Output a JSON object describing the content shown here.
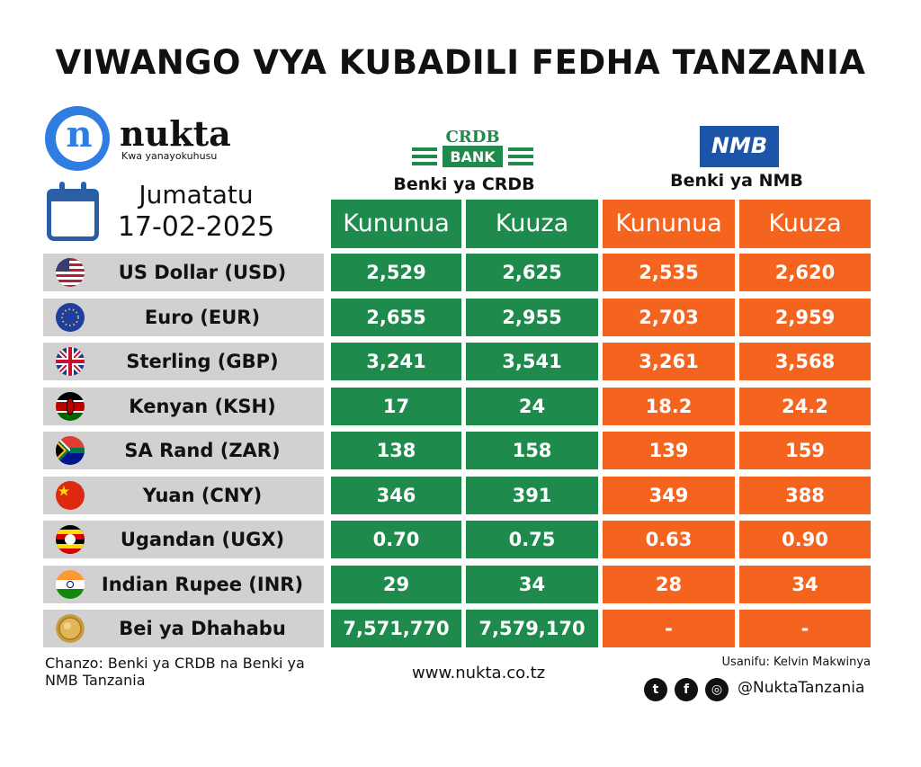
{
  "title": "VIWANGO VYA KUBADILI FEDHA TANZANIA",
  "brand": {
    "name": "nukta",
    "tagline": "Kwa yanayokuhusu",
    "logo_letter": "n"
  },
  "date": {
    "day": "Jumatatu",
    "value": "17-02-2025",
    "icon": "calendar-icon"
  },
  "banks": {
    "crdb": {
      "logo_top": "CRDB",
      "logo_bottom": "BANK",
      "label": "Benki ya CRDB",
      "buy": "Kununua",
      "sell": "Kuuza",
      "color": "#1e8a4c"
    },
    "nmb": {
      "logo_text": "NMB",
      "label": "Benki ya NMB",
      "buy": "Kununua",
      "sell": "Kuuza",
      "color": "#f5641e",
      "logo_color": "#1c55a8"
    }
  },
  "rows": [
    {
      "name": "US Dollar (USD)",
      "flag": "us-flag-icon",
      "crdb_buy": "2,529",
      "crdb_sell": "2,625",
      "nmb_buy": "2,535",
      "nmb_sell": "2,620"
    },
    {
      "name": "Euro (EUR)",
      "flag": "eu-flag-icon",
      "crdb_buy": "2,655",
      "crdb_sell": "2,955",
      "nmb_buy": "2,703",
      "nmb_sell": "2,959"
    },
    {
      "name": "Sterling (GBP)",
      "flag": "uk-flag-icon",
      "crdb_buy": "3,241",
      "crdb_sell": "3,541",
      "nmb_buy": "3,261",
      "nmb_sell": "3,568"
    },
    {
      "name": "Kenyan (KSH)",
      "flag": "kenya-flag-icon",
      "crdb_buy": "17",
      "crdb_sell": "24",
      "nmb_buy": "18.2",
      "nmb_sell": "24.2"
    },
    {
      "name": "SA Rand (ZAR)",
      "flag": "south-africa-flag-icon",
      "crdb_buy": "138",
      "crdb_sell": "158",
      "nmb_buy": "139",
      "nmb_sell": "159"
    },
    {
      "name": "Yuan (CNY)",
      "flag": "china-flag-icon",
      "crdb_buy": "346",
      "crdb_sell": "391",
      "nmb_buy": "349",
      "nmb_sell": "388"
    },
    {
      "name": "Ugandan (UGX)",
      "flag": "uganda-flag-icon",
      "crdb_buy": "0.70",
      "crdb_sell": "0.75",
      "nmb_buy": "0.63",
      "nmb_sell": "0.90"
    },
    {
      "name": "Indian Rupee (INR)",
      "flag": "india-flag-icon",
      "crdb_buy": "29",
      "crdb_sell": "34",
      "nmb_buy": "28",
      "nmb_sell": "34"
    },
    {
      "name": "Bei ya Dhahabu",
      "flag": "gold-coin-icon",
      "crdb_buy": "7,571,770",
      "crdb_sell": "7,579,170",
      "nmb_buy": "-",
      "nmb_sell": "-"
    }
  ],
  "footer": {
    "source": "Chanzo: Benki ya CRDB na Benki ya NMB Tanzania",
    "website": "www.nukta.co.tz",
    "credit": "Usanifu: Kelvin Makwinya",
    "handle": "@NuktaTanzania",
    "social_icons": [
      "twitter-icon",
      "facebook-icon",
      "instagram-icon"
    ]
  }
}
